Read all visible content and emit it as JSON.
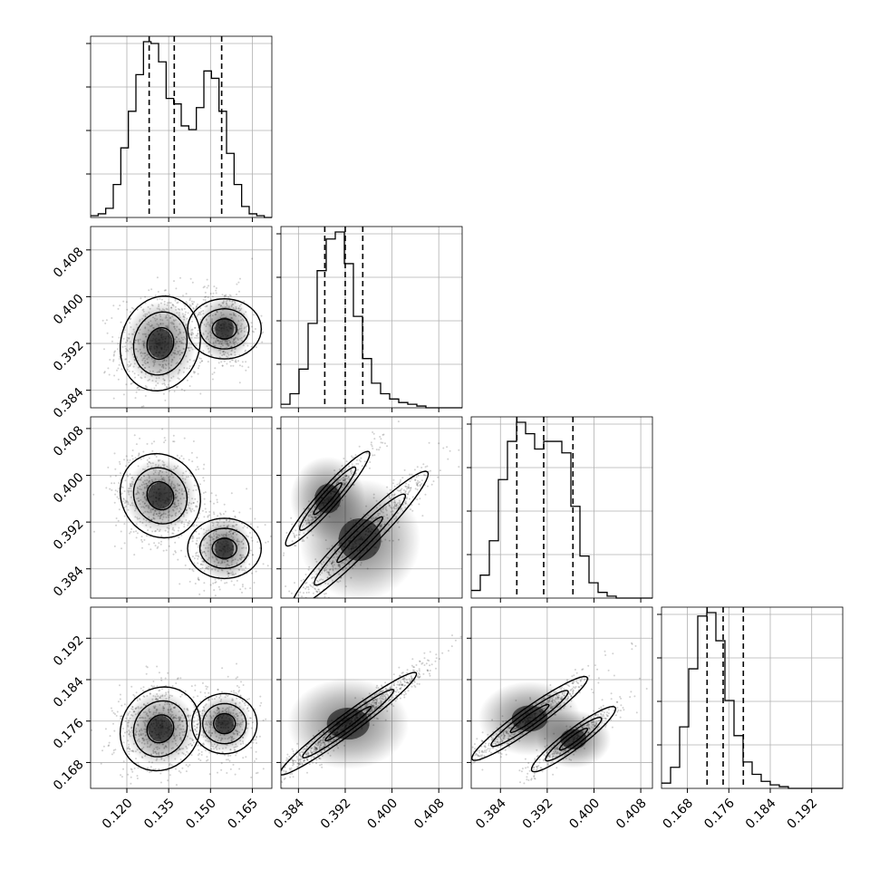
{
  "chart_data": {
    "type": "corner",
    "parameters": [
      {
        "range": [
          0.107,
          0.172
        ],
        "ticks": [
          0.12,
          0.135,
          0.15,
          0.165
        ],
        "tick_labels": [
          "0.120",
          "0.135",
          "0.150",
          "0.165"
        ],
        "quantiles": [
          0.128,
          0.137,
          0.154
        ]
      },
      {
        "range": [
          0.381,
          0.412
        ],
        "ticks": [
          0.384,
          0.392,
          0.4,
          0.408
        ],
        "tick_labels": [
          "0.384",
          "0.392",
          "0.400",
          "0.408"
        ],
        "quantiles": [
          0.3885,
          0.392,
          0.395
        ]
      },
      {
        "range": [
          0.379,
          0.41
        ],
        "ticks": [
          0.384,
          0.392,
          0.4,
          0.408
        ],
        "tick_labels": [
          "0.384",
          "0.392",
          "0.400",
          "0.408"
        ],
        "quantiles": [
          0.3868,
          0.3914,
          0.3964
        ]
      },
      {
        "range": [
          0.163,
          0.198
        ],
        "ticks": [
          0.168,
          0.176,
          0.184,
          0.192
        ],
        "tick_labels": [
          "0.168",
          "0.176",
          "0.184",
          "0.192"
        ],
        "quantiles": [
          0.1718,
          0.1749,
          0.1788
        ]
      }
    ],
    "histograms": [
      {
        "param": 0,
        "bins": 24,
        "counts": [
          1,
          2,
          5,
          18,
          38,
          58,
          78,
          96,
          95,
          85,
          65,
          62,
          50,
          48,
          60,
          80,
          76,
          58,
          35,
          18,
          6,
          2,
          1,
          0
        ]
      },
      {
        "param": 1,
        "bins": 20,
        "counts": [
          2,
          8,
          22,
          48,
          78,
          96,
          100,
          82,
          52,
          28,
          14,
          8,
          5,
          3,
          2,
          1,
          0,
          0,
          0,
          0
        ]
      },
      {
        "param": 2,
        "bins": 20,
        "counts": [
          4,
          12,
          30,
          62,
          82,
          92,
          86,
          78,
          82,
          82,
          76,
          48,
          22,
          8,
          3,
          1,
          0,
          0,
          0,
          0
        ]
      },
      {
        "param": 3,
        "bins": 20,
        "counts": [
          3,
          12,
          35,
          68,
          98,
          100,
          84,
          50,
          30,
          15,
          8,
          4,
          2,
          1,
          0,
          0,
          0,
          0,
          0,
          0
        ]
      }
    ],
    "pairs": [
      {
        "x": 0,
        "y": 1
      },
      {
        "x": 0,
        "y": 2
      },
      {
        "x": 1,
        "y": 2
      },
      {
        "x": 0,
        "y": 3
      },
      {
        "x": 1,
        "y": 3
      },
      {
        "x": 2,
        "y": 3
      }
    ],
    "grid": true,
    "legend": "none"
  }
}
